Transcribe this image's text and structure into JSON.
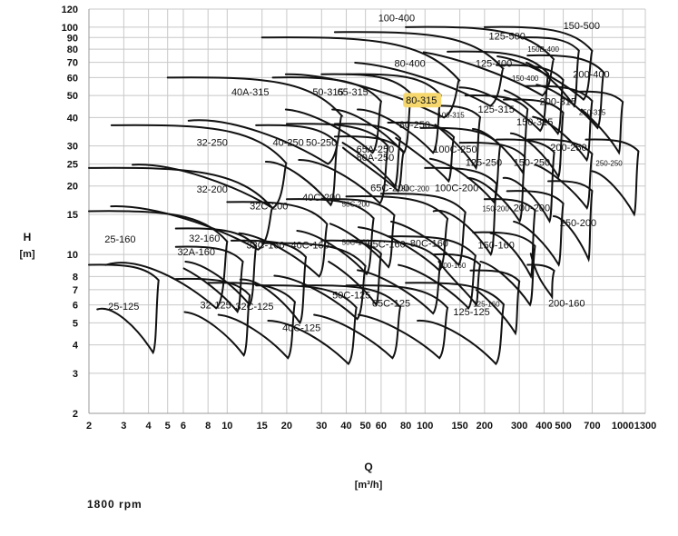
{
  "chart_data": {
    "type": "line",
    "x_axis": {
      "label": "Q",
      "unit": "[m³/h]",
      "scale": "log",
      "range": [
        2,
        1300
      ],
      "ticks": [
        2,
        3,
        4,
        5,
        6,
        8,
        10,
        15,
        20,
        30,
        40,
        50,
        60,
        80,
        100,
        150,
        200,
        300,
        400,
        500,
        700,
        1000,
        1300
      ],
      "tick_labels": [
        "2",
        "3",
        "4",
        "5",
        "6",
        "8",
        "10",
        "15",
        "20",
        "30",
        "40",
        "50",
        "60",
        "80",
        "100",
        "150",
        "200",
        "300",
        "400",
        "500",
        "700",
        "1000",
        "1300"
      ]
    },
    "y_axis": {
      "label": "H",
      "unit": "[m]",
      "scale": "log",
      "range": [
        2,
        120
      ],
      "ticks": [
        2,
        3,
        4,
        5,
        6,
        7,
        8,
        10,
        15,
        20,
        25,
        30,
        40,
        50,
        60,
        70,
        80,
        90,
        100,
        120
      ],
      "tick_labels": [
        "2",
        "3",
        "4",
        "5",
        "6",
        "7",
        "8",
        "10",
        "15",
        "20",
        "25",
        "30",
        "40",
        "50",
        "60",
        "70",
        "80",
        "90",
        "100",
        "120"
      ]
    },
    "grid": true,
    "highlight_color": "#f5d76e",
    "pump_models": [
      {
        "label": "25-125",
        "q0": 2,
        "q1": 4.5,
        "hTop": 9,
        "hBot": 3.7,
        "lx": 2.5,
        "ly": 5.7
      },
      {
        "label": "25-160",
        "q0": 2,
        "q1": 10,
        "hTop": 15.5,
        "hBot": 5.8,
        "lx": 2.4,
        "ly": 11.3
      },
      {
        "label": "32-125",
        "q0": 5.5,
        "q1": 13,
        "hTop": 7.8,
        "hBot": 3.6,
        "lx": 7.3,
        "ly": 5.8
      },
      {
        "label": "32-160",
        "q0": 5.5,
        "q1": 14,
        "hTop": 13,
        "hBot": 6,
        "lx": 6.4,
        "ly": 11.4
      },
      {
        "label": "32A-160",
        "q0": 5.5,
        "q1": 12,
        "hTop": 10.8,
        "hBot": 5.6,
        "lx": 5.6,
        "ly": 9.9
      },
      {
        "label": "32-200",
        "q0": 2,
        "q1": 17,
        "hTop": 24,
        "hBot": 10.5,
        "lx": 7,
        "ly": 18.7
      },
      {
        "label": "32-250",
        "q0": 2.6,
        "q1": 20,
        "hTop": 37,
        "hBot": 16,
        "lx": 7,
        "ly": 30
      },
      {
        "label": "32C-125",
        "q0": 8,
        "q1": 22,
        "hTop": 7.5,
        "hBot": 3.5,
        "lx": 11,
        "ly": 5.7
      },
      {
        "label": "32C-160",
        "q0": 10.5,
        "q1": 25,
        "hTop": 11.5,
        "hBot": 5,
        "lx": 12.5,
        "ly": 10.6
      },
      {
        "label": "32C-200",
        "q0": 10,
        "q1": 32,
        "hTop": 17,
        "hBot": 8,
        "lx": 13,
        "ly": 15.8
      },
      {
        "label": "40-250",
        "q0": 14,
        "q1": 36,
        "hTop": 37,
        "hBot": 16.5,
        "lx": 17,
        "ly": 30
      },
      {
        "label": "40A-315",
        "q0": 5,
        "q1": 38,
        "hTop": 60,
        "hBot": 25,
        "lx": 10.5,
        "ly": 50
      },
      {
        "label": "40C-125",
        "q0": 14,
        "q1": 45,
        "hTop": 7.3,
        "hBot": 3.3,
        "lx": 19,
        "ly": 4.6
      },
      {
        "label": "40C-160",
        "q0": 15,
        "q1": 50,
        "hTop": 11.2,
        "hBot": 5.2,
        "lx": 21,
        "ly": 10.6
      },
      {
        "label": "40C-200",
        "q0": 20,
        "q1": 55,
        "hTop": 17.5,
        "hBot": 8.2,
        "lx": 24,
        "ly": 17.2
      },
      {
        "label": "50-250",
        "q0": 20,
        "q1": 65,
        "hTop": 37.5,
        "hBot": 16.8,
        "lx": 25,
        "ly": 30
      },
      {
        "label": "50-315",
        "q0": 17,
        "q1": 60,
        "hTop": 60,
        "hBot": 28,
        "lx": 27,
        "ly": 50
      },
      {
        "label": "50C-125",
        "q0": 24,
        "q1": 75,
        "hTop": 7.3,
        "hBot": 3.5,
        "lx": 34,
        "ly": 6.4
      },
      {
        "label": "50C-160",
        "q0": 30,
        "q1": 60,
        "hTop": 11.5,
        "hBot": 6,
        "lx": 38,
        "ly": 11
      },
      {
        "label": "50C-200",
        "q0": 30,
        "q1": 70,
        "hTop": 17.5,
        "hBot": 8.8,
        "lx": 38,
        "ly": 16.2
      },
      {
        "label": "65-315",
        "q0": 30,
        "q1": 85,
        "hTop": 62,
        "hBot": 28,
        "lx": 36,
        "ly": 50
      },
      {
        "label": "65A-250",
        "q0": 35,
        "q1": 75,
        "hTop": 37.5,
        "hBot": 20,
        "lx": 45,
        "ly": 28
      },
      {
        "label": "80A-250",
        "q0": 35,
        "q1": 78,
        "hTop": 33,
        "hBot": 19,
        "lx": 45,
        "ly": 25.8
      },
      {
        "label": "65C-125",
        "q0": 40,
        "q1": 130,
        "hTop": 7.3,
        "hBot": 3.5,
        "lx": 54,
        "ly": 5.9
      },
      {
        "label": "65C-160",
        "q0": 40,
        "q1": 120,
        "hTop": 11.5,
        "hBot": 5.5,
        "lx": 51,
        "ly": 10.7
      },
      {
        "label": "65C-200",
        "q0": 40,
        "q1": 130,
        "hTop": 18,
        "hBot": 8.5,
        "lx": 53,
        "ly": 19
      },
      {
        "label": "80-250",
        "q0": 65,
        "q1": 140,
        "hTop": 38,
        "hBot": 21,
        "lx": 74,
        "ly": 36
      },
      {
        "label": "80-315",
        "q0": 40,
        "q1": 120,
        "hTop": 62,
        "hBot": 28,
        "lx": 80,
        "ly": 46
      },
      {
        "label": "80-400",
        "q0": 15,
        "q1": 150,
        "hTop": 90,
        "hBot": 40,
        "lx": 70,
        "ly": 67
      },
      {
        "label": "80C-160",
        "q0": 65,
        "q1": 180,
        "hTop": 12,
        "hBot": 5.8,
        "lx": 84,
        "ly": 10.8
      },
      {
        "label": "80C-200",
        "q0": 60,
        "q1": 160,
        "hTop": 18.5,
        "hBot": 9,
        "lx": 76,
        "ly": 19
      },
      {
        "label": "100-160",
        "q0": 110,
        "q1": 190,
        "hTop": 10,
        "hBot": 6,
        "lx": 118,
        "ly": 8.7
      },
      {
        "label": "100-315",
        "q0": 105,
        "q1": 190,
        "hTop": 45,
        "hBot": 24,
        "lx": 116,
        "ly": 40
      },
      {
        "label": "100-400",
        "q0": 35,
        "q1": 250,
        "hTop": 95,
        "hBot": 45,
        "lx": 58,
        "ly": 106
      },
      {
        "label": "100C-200",
        "q0": 100,
        "q1": 230,
        "hTop": 24,
        "hBot": 10,
        "lx": 112,
        "ly": 19
      },
      {
        "label": "100C-250",
        "q0": 95,
        "q1": 240,
        "hTop": 36,
        "hBot": 17,
        "lx": 110,
        "ly": 28
      },
      {
        "label": "125-125",
        "q0": 80,
        "q1": 250,
        "hTop": 7.5,
        "hBot": 3.3,
        "lx": 139,
        "ly": 5.4
      },
      {
        "label": "125-160",
        "q0": 170,
        "q1": 300,
        "hTop": 8.5,
        "hBot": 4.5,
        "lx": 175,
        "ly": 5.9
      },
      {
        "label": "125-250",
        "q0": 150,
        "q1": 320,
        "hTop": 31,
        "hBot": 14,
        "lx": 160,
        "ly": 24.5
      },
      {
        "label": "125-315",
        "q0": 160,
        "q1": 330,
        "hTop": 50,
        "hBot": 23,
        "lx": 185,
        "ly": 42
      },
      {
        "label": "125-400",
        "q0": 130,
        "q1": 420,
        "hTop": 78,
        "hBot": 35,
        "lx": 180,
        "ly": 67
      },
      {
        "label": "125-500",
        "q0": 80,
        "q1": 450,
        "hTop": 100,
        "hBot": 50,
        "lx": 210,
        "ly": 88
      },
      {
        "label": "150-160",
        "q0": 175,
        "q1": 360,
        "hTop": 12.5,
        "hBot": 6,
        "lx": 185,
        "ly": 10.6
      },
      {
        "label": "150-200",
        "q0": 200,
        "q1": 360,
        "hTop": 17.5,
        "hBot": 8,
        "lx": 195,
        "ly": 15.5
      },
      {
        "label": "150-250",
        "q0": 230,
        "q1": 450,
        "hTop": 32,
        "hBot": 14,
        "lx": 280,
        "ly": 24.5
      },
      {
        "label": "150-315",
        "q0": 250,
        "q1": 500,
        "hTop": 48,
        "hBot": 22,
        "lx": 290,
        "ly": 37
      },
      {
        "label": "150-400",
        "q0": 230,
        "q1": 500,
        "hTop": 68,
        "hBot": 34,
        "lx": 275,
        "ly": 58
      },
      {
        "label": "150-500",
        "q0": 200,
        "q1": 700,
        "hTop": 100,
        "hBot": 48,
        "lx": 500,
        "ly": 98
      },
      {
        "label": "150B-400",
        "q0": 300,
        "q1": 600,
        "hTop": 90,
        "hBot": 45,
        "lx": 330,
        "ly": 78
      },
      {
        "label": "200-160",
        "q0": 330,
        "q1": 450,
        "hTop": 9,
        "hBot": 6.5,
        "lx": 420,
        "ly": 5.9
      },
      {
        "label": "200-200",
        "q0": 260,
        "q1": 500,
        "hTop": 19,
        "hBot": 9,
        "lx": 280,
        "ly": 15.5
      },
      {
        "label": "200-250",
        "q0": 330,
        "q1": 700,
        "hTop": 32,
        "hBot": 16,
        "lx": 430,
        "ly": 28.5
      },
      {
        "label": "200-315",
        "q0": 320,
        "q1": 700,
        "hTop": 55,
        "hBot": 26,
        "lx": 380,
        "ly": 45.5
      },
      {
        "label": "200-400",
        "q0": 330,
        "q1": 800,
        "hTop": 75,
        "hBot": 36,
        "lx": 560,
        "ly": 60
      },
      {
        "label": "250-200",
        "q0": 420,
        "q1": 700,
        "hTop": 21,
        "hBot": 9.5,
        "lx": 480,
        "ly": 13.3
      },
      {
        "label": "250-250",
        "q0": 650,
        "q1": 1200,
        "hTop": 32,
        "hBot": 15,
        "lx": 730,
        "ly": 24.5
      },
      {
        "label": "250-315",
        "q0": 580,
        "q1": 1000,
        "hTop": 52,
        "hBot": 28,
        "lx": 600,
        "ly": 41
      }
    ]
  },
  "footer": {
    "speed": "1800 rpm"
  }
}
